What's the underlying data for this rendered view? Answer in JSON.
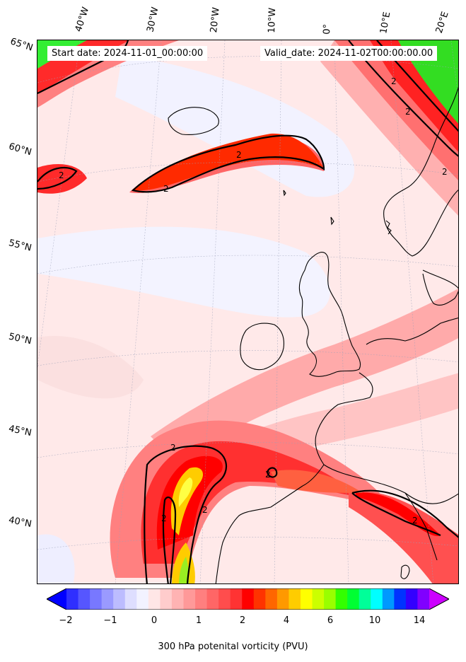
{
  "map": {
    "start_date_text": "Start date: 2024-11-01_00:00:00",
    "valid_date_text": "Valid_date: 2024-11-02T00:00:00.00",
    "longitude_labels": [
      "40°W",
      "30°W",
      "20°W",
      "10°W",
      "0°",
      "10°E",
      "20°E"
    ],
    "latitude_labels": [
      "65°N",
      "60°N",
      "55°N",
      "50°N",
      "45°N",
      "40°N"
    ],
    "contour_label": "2",
    "coastline_color": "#000000"
  },
  "colorbar": {
    "label": "300 hPa potenital vorticity (PVU)",
    "ticks": [
      "−2",
      "−1",
      "0",
      "1",
      "2",
      "4",
      "6",
      "10",
      "14"
    ],
    "colors": [
      "#0000ff",
      "#2f2fff",
      "#5656ff",
      "#7878ff",
      "#9a9aff",
      "#bcbcff",
      "#dedeff",
      "#f2f2ff",
      "#ffe6e6",
      "#ffcccc",
      "#ffb3b3",
      "#ff9999",
      "#ff7f7f",
      "#ff6666",
      "#ff4d4d",
      "#ff3333",
      "#ff0000",
      "#ff3300",
      "#ff6600",
      "#ff9900",
      "#ffcc00",
      "#ffff00",
      "#ccff00",
      "#99ff00",
      "#33ff00",
      "#00ff33",
      "#00ff99",
      "#00ffff",
      "#0099ff",
      "#0033ff",
      "#3300ff",
      "#8000ff",
      "#cc00ff"
    ]
  }
}
